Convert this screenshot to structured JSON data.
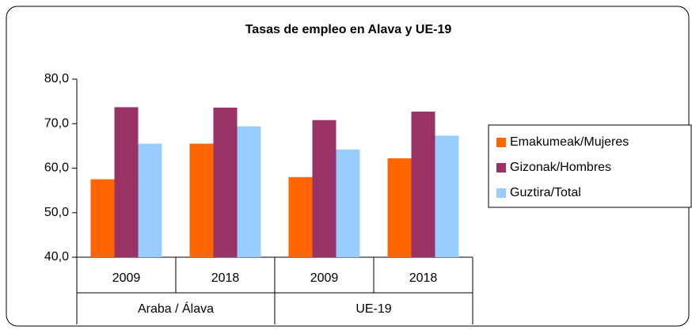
{
  "chart_data": {
    "type": "bar",
    "title": "Tasas de empleo en Alava y UE-19",
    "groups": [
      {
        "name": "Araba / Álava",
        "categories": [
          "2009",
          "2018"
        ]
      },
      {
        "name": "UE-19",
        "categories": [
          "2009",
          "2018"
        ]
      }
    ],
    "series": [
      {
        "name": "Emakumeak/Mujeres",
        "color": "#ff6600",
        "values": [
          57.5,
          65.5,
          58.0,
          62.2
        ]
      },
      {
        "name": "Gizonak/Hombres",
        "color": "#993366",
        "values": [
          73.7,
          73.6,
          70.8,
          72.7
        ]
      },
      {
        "name": "Guztira/Total",
        "color": "#99ccff",
        "values": [
          65.5,
          69.4,
          64.2,
          67.3
        ]
      }
    ],
    "ylim": [
      40,
      80
    ],
    "yticks": [
      {
        "value": 40,
        "label": "40,0"
      },
      {
        "value": 50,
        "label": "50,0"
      },
      {
        "value": 60,
        "label": "60,0"
      },
      {
        "value": 70,
        "label": "70,0"
      },
      {
        "value": 80,
        "label": "80,0"
      }
    ],
    "grid": false,
    "legend": "right"
  }
}
